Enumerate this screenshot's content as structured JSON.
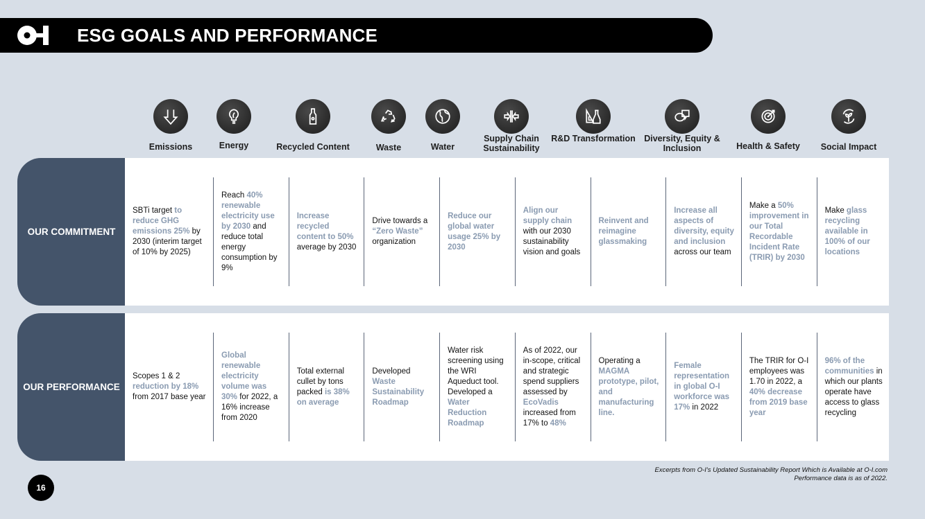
{
  "header": {
    "logo_text": "O-I",
    "title": "ESG GOALS AND PERFORMANCE"
  },
  "categories": [
    {
      "label": "Emissions",
      "icon": "arrow-down-icon"
    },
    {
      "label": "Energy",
      "icon": "lightbulb-leaf-icon"
    },
    {
      "label": "Recycled Content",
      "icon": "bottle-icon"
    },
    {
      "label": "Waste",
      "icon": "recycle-icon"
    },
    {
      "label": "Water",
      "icon": "globe-icon"
    },
    {
      "label": "Supply Chain Sustainability",
      "icon": "converging-arrows-icon"
    },
    {
      "label": "R&D Transformation",
      "icon": "flask-ruler-icon"
    },
    {
      "label": "Diversity, Equity & Inclusion",
      "icon": "speech-bubbles-icon"
    },
    {
      "label": "Health & Safety",
      "icon": "target-icon"
    },
    {
      "label": "Social Impact",
      "icon": "plant-cycle-icon"
    }
  ],
  "rows": [
    {
      "label": "OUR COMMITMENT",
      "cells": [
        [
          {
            "t": "SBTi target ",
            "hl": false
          },
          {
            "t": "to reduce GHG emissions 25%",
            "hl": true
          },
          {
            "t": " by 2030 (interim target of 10% by 2025)",
            "hl": false
          }
        ],
        [
          {
            "t": "Reach ",
            "hl": false
          },
          {
            "t": "40% renewable electricity use by 2030",
            "hl": true
          },
          {
            "t": " and reduce total energy consumption by 9%",
            "hl": false
          }
        ],
        [
          {
            "t": "Increase recycled content to 50%",
            "hl": true
          },
          {
            "t": " average by 2030",
            "hl": false
          }
        ],
        [
          {
            "t": "Drive towards a ",
            "hl": false
          },
          {
            "t": "“Zero Waste”",
            "hl": true
          },
          {
            "t": " organization",
            "hl": false
          }
        ],
        [
          {
            "t": "Reduce our global water usage 25% by 2030",
            "hl": true
          }
        ],
        [
          {
            "t": "Align our supply chain",
            "hl": true
          },
          {
            "t": " with our 2030 sustainability vision and goals",
            "hl": false
          }
        ],
        [
          {
            "t": "Reinvent and reimagine glassmaking",
            "hl": true
          }
        ],
        [
          {
            "t": "Increase all aspects of diversity, equity and inclusion",
            "hl": true
          },
          {
            "t": " across our team",
            "hl": false
          }
        ],
        [
          {
            "t": "Make a ",
            "hl": false
          },
          {
            "t": "50% improvement in our Total Recordable Incident Rate (TRIR) by 2030",
            "hl": true
          }
        ],
        [
          {
            "t": "Make ",
            "hl": false
          },
          {
            "t": "glass recycling available in 100% of our locations",
            "hl": true
          }
        ]
      ]
    },
    {
      "label": "OUR PERFORMANCE",
      "cells": [
        [
          {
            "t": "Scopes 1 & 2 ",
            "hl": false
          },
          {
            "t": "reduction by 18%",
            "hl": true
          },
          {
            "t": " from 2017 base year",
            "hl": false
          }
        ],
        [
          {
            "t": "Global renewable electricity volume was 30%",
            "hl": true
          },
          {
            "t": " for 2022, a 16% increase from 2020",
            "hl": false
          }
        ],
        [
          {
            "t": "Total external cullet by tons packed ",
            "hl": false
          },
          {
            "t": "is 38% on average",
            "hl": true
          }
        ],
        [
          {
            "t": "Developed ",
            "hl": false
          },
          {
            "t": "Waste Sustainability Roadmap",
            "hl": true
          }
        ],
        [
          {
            "t": "Water risk screening using the WRI Aqueduct tool. Developed a ",
            "hl": false
          },
          {
            "t": "Water Reduction Roadmap",
            "hl": true
          }
        ],
        [
          {
            "t": "As of 2022, our in-scope, critical and strategic spend suppliers assessed by ",
            "hl": false
          },
          {
            "t": "EcoVadis",
            "hl": true
          },
          {
            "t": " increased from 17% to ",
            "hl": false
          },
          {
            "t": "48%",
            "hl": true
          }
        ],
        [
          {
            "t": "Operating a ",
            "hl": false
          },
          {
            "t": "MAGMA prototype, pilot, and manufacturing line.",
            "hl": true
          }
        ],
        [
          {
            "t": "Female representation in global O-I workforce was 17%",
            "hl": true
          },
          {
            "t": " in 2022",
            "hl": false
          }
        ],
        [
          {
            "t": "The TRIR for O-I employees was 1.70 in 2022, a ",
            "hl": false
          },
          {
            "t": "40% decrease from 2019 base year",
            "hl": true
          }
        ],
        [
          {
            "t": "96% of the communities",
            "hl": true
          },
          {
            "t": " in which our plants operate have access to glass recycling",
            "hl": false
          }
        ]
      ]
    }
  ],
  "footnote": {
    "line1": "Excerpts from O-I's Updated Sustainability Report Which is Available at O-I.com",
    "line2": "Performance data is as of 2022."
  },
  "page_number": "16",
  "colors": {
    "accent": "#8a9bb1",
    "tab": "#44546a",
    "background": "#d7dee7"
  }
}
